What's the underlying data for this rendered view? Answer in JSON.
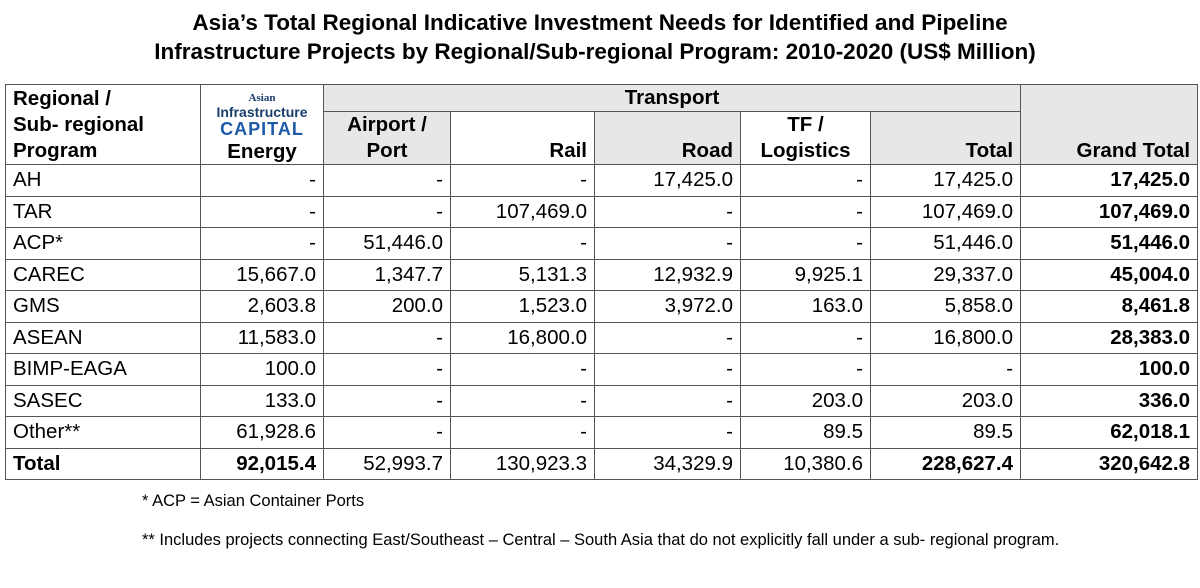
{
  "title": {
    "line1": "Asia’s Total Regional Indicative Investment Needs for Identified and Pipeline",
    "line2": "Infrastructure Projects by Regional/Sub-regional Program: 2010-2020 (US$ Million)"
  },
  "logo": {
    "line1": "Asian",
    "line2": "Infrastructure",
    "line3": "CAPITAL"
  },
  "headers": {
    "program_line1": "Regional /",
    "program_line2": "Sub- regional",
    "program_line3": "Program",
    "energy": "Energy",
    "transport": "Transport",
    "airport_line1": "Airport /",
    "airport_line2": "Port",
    "rail": "Rail",
    "road": "Road",
    "tf_line1": "TF /",
    "tf_line2": "Logistics",
    "total": "Total",
    "grand_total": "Grand Total"
  },
  "rows": [
    {
      "program": "AH",
      "energy": "-",
      "airport": "-",
      "rail": "-",
      "road": "17,425.0",
      "tf": "-",
      "total": "17,425.0",
      "grand": "17,425.0"
    },
    {
      "program": "TAR",
      "energy": "-",
      "airport": "-",
      "rail": "107,469.0",
      "road": "-",
      "tf": "-",
      "total": "107,469.0",
      "grand": "107,469.0"
    },
    {
      "program": "ACP*",
      "energy": "-",
      "airport": "51,446.0",
      "rail": "-",
      "road": "-",
      "tf": "-",
      "total": "51,446.0",
      "grand": "51,446.0"
    },
    {
      "program": "CAREC",
      "energy": "15,667.0",
      "airport": "1,347.7",
      "rail": "5,131.3",
      "road": "12,932.9",
      "tf": "9,925.1",
      "total": "29,337.0",
      "grand": "45,004.0"
    },
    {
      "program": "GMS",
      "energy": "2,603.8",
      "airport": "200.0",
      "rail": "1,523.0",
      "road": "3,972.0",
      "tf": "163.0",
      "total": "5,858.0",
      "grand": "8,461.8"
    },
    {
      "program": "ASEAN",
      "energy": "11,583.0",
      "airport": "-",
      "rail": "16,800.0",
      "road": "-",
      "tf": "-",
      "total": "16,800.0",
      "grand": "28,383.0"
    },
    {
      "program": "BIMP-EAGA",
      "energy": "100.0",
      "airport": "-",
      "rail": "-",
      "road": "-",
      "tf": "-",
      "total": "-",
      "grand": "100.0"
    },
    {
      "program": "SASEC",
      "energy": "133.0",
      "airport": "-",
      "rail": "-",
      "road": "-",
      "tf": "203.0",
      "total": "203.0",
      "grand": "336.0"
    },
    {
      "program": "Other**",
      "energy": "61,928.6",
      "airport": "-",
      "rail": "-",
      "road": "-",
      "tf": "89.5",
      "total": "89.5",
      "grand": "62,018.1"
    }
  ],
  "total_row": {
    "program": "Total",
    "energy": "92,015.4",
    "airport": "52,993.7",
    "rail": "130,923.3",
    "road": "34,329.9",
    "tf": "10,380.6",
    "total": "228,627.4",
    "grand": "320,642.8"
  },
  "footnotes": {
    "acp": "* ACP = Asian Container Ports",
    "other": "** Includes projects connecting East/Southeast – Central – South Asia that do not explicitly fall under a sub- regional program."
  },
  "colors": {
    "header_fill": "#e7e7e7",
    "logo_dark": "#1a3e6b",
    "logo_blue": "#1e5aa8"
  }
}
